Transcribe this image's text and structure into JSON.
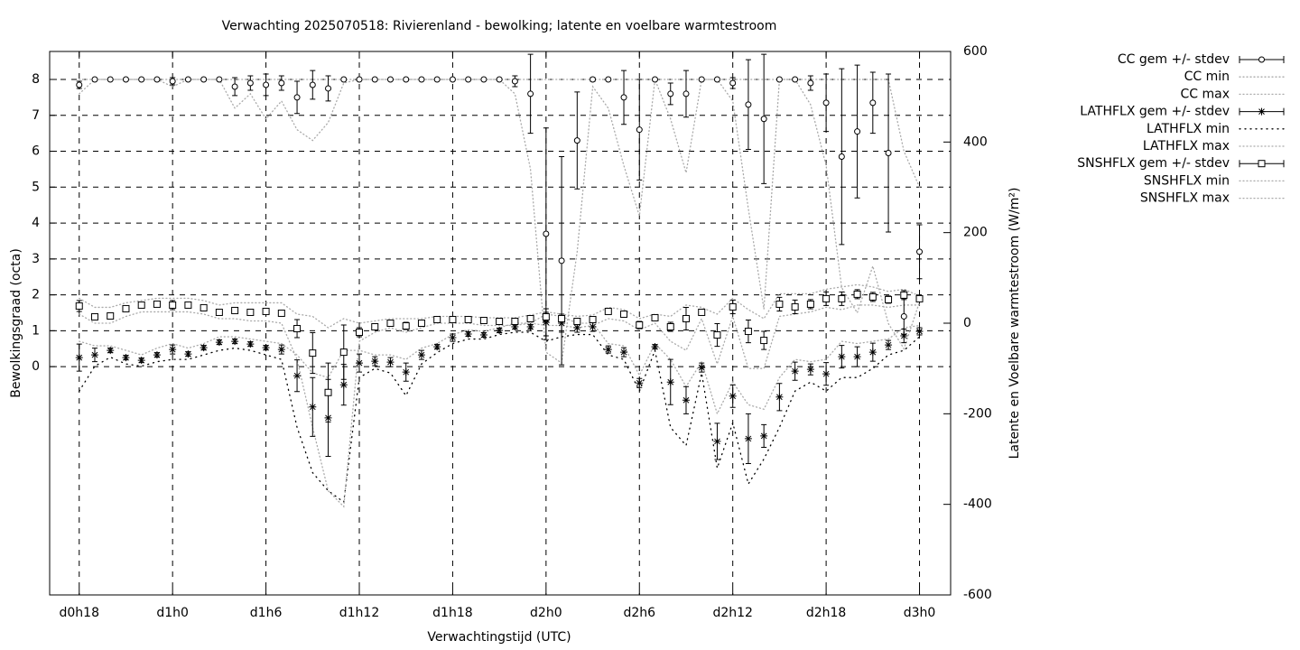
{
  "chart_data": {
    "type": "line",
    "title": "Verwachting 2025070518: Rivierenland - bewolking; latente en voelbare warmtestroom",
    "x_label": "Verwachtingstijd (UTC)",
    "y_label": "Bewolkingsgraad (octa)",
    "y2_label": "Latente en Voelbare warmtestroom (W/m²)",
    "grid": true,
    "legend": "outside-right",
    "x": [
      18,
      19,
      20,
      21,
      22,
      23,
      24,
      25,
      26,
      27,
      28,
      29,
      30,
      31,
      32,
      33,
      34,
      35,
      36,
      37,
      38,
      39,
      40,
      41,
      42,
      43,
      44,
      45,
      46,
      47,
      48,
      49,
      50,
      51,
      52,
      53,
      54,
      55,
      56,
      57,
      58,
      59,
      60,
      61,
      62,
      63,
      64,
      65,
      66,
      67,
      68,
      69,
      70,
      71,
      72
    ],
    "xlim": [
      16.1,
      74
    ],
    "xticks": [
      {
        "value": 18,
        "label": "d0h18"
      },
      {
        "value": 24,
        "label": "d1h0"
      },
      {
        "value": 30,
        "label": "d1h6"
      },
      {
        "value": 36,
        "label": "d1h12"
      },
      {
        "value": 42,
        "label": "d1h18"
      },
      {
        "value": 48,
        "label": "d2h0"
      },
      {
        "value": 54,
        "label": "d2h6"
      },
      {
        "value": 60,
        "label": "d2h12"
      },
      {
        "value": 66,
        "label": "d2h18"
      },
      {
        "value": 72,
        "label": "d3h0"
      }
    ],
    "ylim": [
      -6.36,
      8.78
    ],
    "yticks": [
      0,
      1,
      2,
      3,
      4,
      5,
      6,
      7,
      8
    ],
    "y2lim": [
      -600,
      600
    ],
    "y2ticks": [
      -600,
      -400,
      -200,
      0,
      200,
      400,
      600
    ],
    "series": [
      {
        "name": "CC gem +/- stdev",
        "color": "#000000",
        "marker": "circle",
        "values": [
          7.85,
          8,
          8,
          8,
          8,
          8,
          7.95,
          8,
          8,
          8,
          7.8,
          7.9,
          7.85,
          7.9,
          7.5,
          7.85,
          7.75,
          8,
          8,
          8,
          8,
          8,
          8,
          8,
          8,
          8,
          8,
          8,
          7.95,
          7.6,
          3.7,
          2.95,
          6.3,
          8,
          8,
          7.5,
          6.6,
          8,
          7.6,
          7.6,
          8,
          8,
          7.9,
          7.3,
          6.9,
          8,
          8,
          7.9,
          7.35,
          5.85,
          6.55,
          7.35,
          5.95,
          1.4,
          3.2
        ],
        "errors": [
          0.1,
          0,
          0,
          0,
          0,
          0,
          0.1,
          0,
          0,
          0,
          0.25,
          0.2,
          0.3,
          0.2,
          0.45,
          0.4,
          0.35,
          0,
          0,
          0,
          0,
          0,
          0,
          0,
          0,
          0,
          0,
          0,
          0.15,
          1.1,
          2.95,
          2.9,
          1.35,
          0.05,
          0,
          0.75,
          1.4,
          0,
          0.3,
          0.65,
          0,
          0,
          0.15,
          1.25,
          1.8,
          0,
          0,
          0.2,
          0.8,
          2.45,
          1.85,
          0.85,
          2.2,
          0.5,
          0.75
        ]
      },
      {
        "name": "CC min",
        "color": "#aaaaaa",
        "dash": "1,3",
        "values": [
          7.6,
          8,
          8,
          8,
          8,
          8,
          7.8,
          8,
          8,
          8,
          7.2,
          7.6,
          6.9,
          7.4,
          6.6,
          6.3,
          6.8,
          7.9,
          8,
          8,
          8,
          8,
          8,
          8,
          8,
          8,
          8,
          8,
          7.6,
          5.5,
          0.4,
          0.1,
          3.2,
          7.8,
          7.2,
          5.6,
          4.2,
          8,
          6.9,
          5.4,
          8,
          8,
          7.4,
          4.4,
          1.6,
          8,
          8,
          7.3,
          5.6,
          2.2,
          1.5,
          2.8,
          1.2,
          0.5,
          1.8
        ]
      },
      {
        "name": "CC max",
        "color": "#aaaaaa",
        "dash": "1,3",
        "values": [
          8,
          8,
          8,
          8,
          8,
          8,
          8,
          8,
          8,
          8,
          8,
          8,
          8,
          8,
          8,
          8,
          8,
          8,
          8,
          8,
          8,
          8,
          8,
          8,
          8,
          8,
          8,
          8,
          8,
          8,
          8,
          8,
          8,
          8,
          8,
          8,
          8,
          8,
          8,
          8,
          8,
          8,
          8,
          8,
          8,
          8,
          8,
          8,
          8,
          8,
          8,
          8,
          8,
          6,
          5
        ]
      },
      {
        "name": "LATHFLX gem +/- stdev",
        "color": "#000000",
        "marker": "star",
        "axis": "y2",
        "values": [
          -76,
          -70,
          -60,
          -76,
          -82,
          -70,
          -58,
          -68,
          -54,
          -42,
          -40,
          -46,
          -54,
          -58,
          -116,
          -185,
          -209,
          -136,
          -88,
          -84,
          -86,
          -108,
          -70,
          -52,
          -32,
          -24,
          -26,
          -16,
          -8,
          -8,
          2,
          0,
          -10,
          -8,
          -58,
          -64,
          -132,
          -52,
          -130,
          -170,
          -98,
          -261,
          -161,
          -255,
          -249,
          -163,
          -106,
          -102,
          -112,
          -74,
          -74,
          -64,
          -48,
          -28,
          -18
        ],
        "errors": [
          30,
          15,
          5,
          5,
          5,
          5,
          10,
          5,
          5,
          5,
          5,
          5,
          5,
          10,
          35,
          65,
          85,
          45,
          20,
          10,
          10,
          20,
          10,
          5,
          8,
          5,
          5,
          5,
          5,
          5,
          30,
          20,
          10,
          10,
          8,
          10,
          10,
          5,
          50,
          30,
          10,
          40,
          25,
          55,
          25,
          30,
          20,
          12,
          25,
          25,
          22,
          20,
          10,
          15,
          8
        ]
      },
      {
        "name": "LATHFLX min",
        "color": "#000000",
        "dash": "1,5",
        "axis": "y2",
        "values": [
          -150,
          -95,
          -75,
          -90,
          -95,
          -85,
          -80,
          -80,
          -70,
          -60,
          -55,
          -60,
          -70,
          -80,
          -230,
          -330,
          -370,
          -395,
          -120,
          -100,
          -110,
          -160,
          -90,
          -65,
          -45,
          -35,
          -35,
          -25,
          -20,
          -20,
          -40,
          -30,
          -25,
          -25,
          -70,
          -80,
          -150,
          -60,
          -230,
          -270,
          -110,
          -320,
          -220,
          -355,
          -300,
          -230,
          -150,
          -130,
          -150,
          -120,
          -120,
          -100,
          -70,
          -60,
          -30
        ]
      },
      {
        "name": "LATHFLX max",
        "color": "#aaaaaa",
        "dash": "1,3",
        "axis": "y2",
        "values": [
          -40,
          -50,
          -50,
          -60,
          -70,
          -55,
          -45,
          -55,
          -45,
          -30,
          -30,
          -35,
          -40,
          -45,
          -70,
          -110,
          -120,
          -60,
          -60,
          -70,
          -70,
          -80,
          -55,
          -45,
          -25,
          -15,
          -18,
          -10,
          0,
          0,
          20,
          15,
          0,
          0,
          -45,
          -50,
          -115,
          -45,
          -80,
          -140,
          -85,
          -200,
          -130,
          -180,
          -190,
          -120,
          -80,
          -85,
          -80,
          -40,
          -45,
          -40,
          -35,
          -10,
          -5
        ]
      },
      {
        "name": "SNSHFLX gem +/- stdev",
        "color": "#000000",
        "marker": "square",
        "axis": "y2",
        "values": [
          38,
          14,
          16,
          32,
          40,
          42,
          40,
          40,
          34,
          24,
          28,
          24,
          26,
          22,
          -12,
          -66,
          -153,
          -64,
          -20,
          -8,
          0,
          -6,
          0,
          8,
          8,
          8,
          6,
          4,
          4,
          10,
          14,
          10,
          4,
          8,
          26,
          20,
          -4,
          12,
          -8,
          10,
          24,
          -26,
          36,
          -18,
          -38,
          42,
          36,
          42,
          54,
          54,
          64,
          58,
          52,
          62,
          54
        ],
        "errors": [
          12,
          0,
          0,
          0,
          0,
          0,
          10,
          0,
          0,
          0,
          0,
          0,
          0,
          0,
          20,
          45,
          65,
          60,
          10,
          0,
          0,
          8,
          0,
          0,
          5,
          4,
          0,
          0,
          5,
          0,
          10,
          5,
          0,
          5,
          0,
          0,
          8,
          0,
          10,
          25,
          5,
          25,
          15,
          25,
          20,
          15,
          15,
          10,
          15,
          15,
          10,
          10,
          8,
          10,
          5
        ]
      },
      {
        "name": "SNSHFLX min",
        "color": "#aaaaaa",
        "dash": "1,3",
        "axis": "y2",
        "values": [
          20,
          0,
          0,
          15,
          25,
          25,
          25,
          25,
          20,
          10,
          10,
          5,
          5,
          0,
          -80,
          -230,
          -370,
          -405,
          -40,
          -20,
          -10,
          -20,
          -10,
          0,
          0,
          0,
          -5,
          -5,
          -5,
          0,
          -5,
          -5,
          -10,
          -5,
          10,
          5,
          -15,
          0,
          -40,
          -60,
          10,
          -90,
          15,
          -100,
          -100,
          15,
          20,
          25,
          35,
          30,
          40,
          40,
          35,
          40,
          40
        ]
      },
      {
        "name": "SNSHFLX max",
        "color": "#aaaaaa",
        "dash": "1,3",
        "axis": "y2",
        "values": [
          55,
          35,
          35,
          45,
          50,
          55,
          55,
          55,
          50,
          40,
          45,
          45,
          45,
          45,
          20,
          15,
          -10,
          10,
          0,
          5,
          10,
          10,
          10,
          15,
          15,
          15,
          12,
          12,
          12,
          18,
          25,
          20,
          15,
          18,
          35,
          30,
          10,
          20,
          15,
          40,
          35,
          20,
          55,
          30,
          10,
          65,
          65,
          65,
          75,
          80,
          85,
          80,
          70,
          75,
          60
        ]
      }
    ]
  }
}
